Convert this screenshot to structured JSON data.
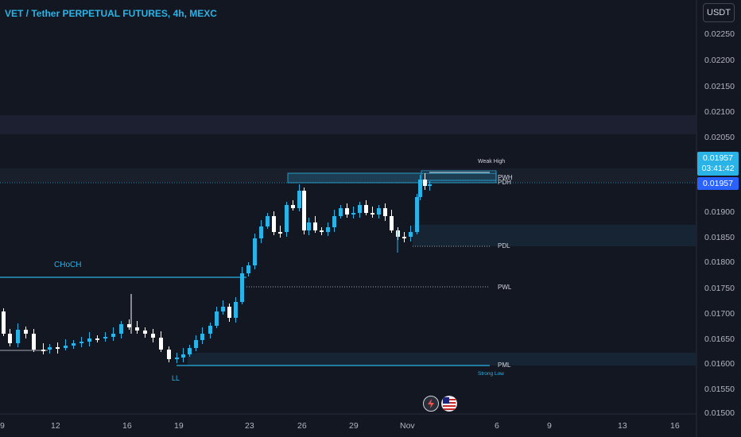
{
  "header": {
    "title": "VET / Tether PERPETUAL FUTURES, 4h, MEXC",
    "currency": "USDT"
  },
  "price_axis": {
    "ticks": [
      "0.02250",
      "0.02200",
      "0.02150",
      "0.02100",
      "0.02050",
      "0.01900",
      "0.01850",
      "0.01800",
      "0.01750",
      "0.01700",
      "0.01650",
      "0.01600",
      "0.01550",
      "0.01500"
    ],
    "last_price": "0.01957",
    "countdown": "03:41:42",
    "second_price": "0.01957"
  },
  "time_axis": {
    "ticks": [
      "9",
      "12",
      "16",
      "19",
      "23",
      "26",
      "29",
      "Nov",
      "6",
      "9",
      "13",
      "16"
    ]
  },
  "annotations": {
    "choch": "CHoCH",
    "ll": "LL",
    "weak_high": "Weak High",
    "pwh": "PWH",
    "pdh": "PDH",
    "pdl": "PDL",
    "pwl": "PWL",
    "strong_low": "Strong Low",
    "pml": "PML"
  },
  "icons": {
    "alert": "lightning-icon",
    "flag": "us-flag-icon"
  },
  "colors": {
    "background": "#131722",
    "up_candle": "#2ab3e6",
    "down_candle": "#ffffff",
    "accent": "#2ab3e6",
    "zone": "#1b2a3a"
  }
}
